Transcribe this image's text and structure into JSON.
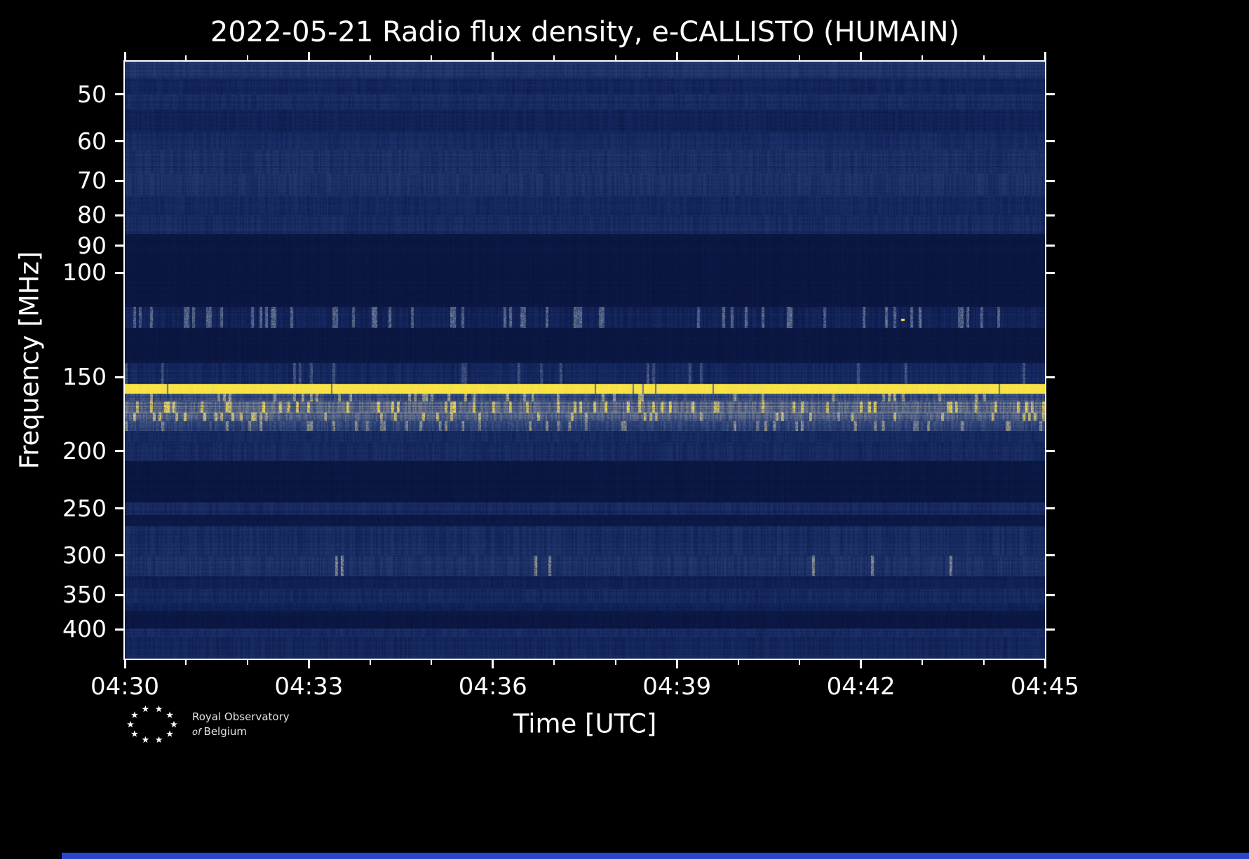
{
  "colors": {
    "background": "#000000",
    "frame": "#ffffff",
    "text": "#ffffff",
    "bottom_strip": "#2a46cf"
  },
  "title": "2022-05-21 Radio flux density, e-CALLISTO (HUMAIN)",
  "logo": {
    "line1": "Royal Observatory",
    "line2_italic": "of",
    "line2_rest": "Belgium"
  },
  "chart_data": {
    "type": "heatmap",
    "title": "2022-05-21 Radio flux density, e-CALLISTO (HUMAIN)",
    "xlabel": "Time [UTC]",
    "ylabel": "Frequency [MHz]",
    "grid": false,
    "legend": "none",
    "x_axis": {
      "ticks": [
        "04:30",
        "04:33",
        "04:36",
        "04:39",
        "04:42",
        "04:45"
      ],
      "minutes_total": 15,
      "minutes_per_major": 3
    },
    "y_axis": {
      "scale": "log",
      "fmin": 44,
      "fmax": 448,
      "ticks": [
        50,
        60,
        70,
        80,
        90,
        100,
        150,
        200,
        250,
        300,
        350,
        400
      ]
    },
    "colormap": [
      {
        "pos": 0.0,
        "color": "#070f33"
      },
      {
        "pos": 0.15,
        "color": "#13255c"
      },
      {
        "pos": 0.35,
        "color": "#2e4479"
      },
      {
        "pos": 0.55,
        "color": "#6d7790"
      },
      {
        "pos": 0.75,
        "color": "#b7ad85"
      },
      {
        "pos": 0.88,
        "color": "#e6d45c"
      },
      {
        "pos": 1.0,
        "color": "#ffe93e"
      }
    ],
    "bands": [
      {
        "f0": 44,
        "f1": 47,
        "base": 0.2,
        "noise": 0.1,
        "speckle": 0,
        "gain": 0,
        "gap": 0
      },
      {
        "f0": 47,
        "f1": 50,
        "base": 0.13,
        "noise": 0.08,
        "speckle": 0,
        "gain": 0,
        "gap": 0
      },
      {
        "f0": 50,
        "f1": 53,
        "base": 0.16,
        "noise": 0.1,
        "speckle": 0,
        "gain": 0,
        "gap": 0
      },
      {
        "f0": 53,
        "f1": 58,
        "base": 0.11,
        "noise": 0.07,
        "speckle": 0,
        "gain": 0,
        "gap": 0
      },
      {
        "f0": 58,
        "f1": 62,
        "base": 0.15,
        "noise": 0.09,
        "speckle": 0,
        "gain": 0,
        "gap": 0
      },
      {
        "f0": 62,
        "f1": 68,
        "base": 0.17,
        "noise": 0.11,
        "speckle": 0,
        "gain": 0,
        "gap": 0
      },
      {
        "f0": 68,
        "f1": 74,
        "base": 0.18,
        "noise": 0.12,
        "speckle": 0,
        "gain": 0,
        "gap": 0
      },
      {
        "f0": 74,
        "f1": 80,
        "base": 0.14,
        "noise": 0.09,
        "speckle": 0,
        "gain": 0,
        "gap": 0
      },
      {
        "f0": 80,
        "f1": 86,
        "base": 0.16,
        "noise": 0.1,
        "speckle": 0,
        "gain": 0,
        "gap": 0
      },
      {
        "f0": 86,
        "f1": 114,
        "base": 0.05,
        "noise": 0.025,
        "speckle": 0,
        "gain": 0,
        "gap": 0
      },
      {
        "f0": 114,
        "f1": 124,
        "base": 0.1,
        "noise": 0.1,
        "speckle": 0.15,
        "gain": 0.45,
        "gap": 0
      },
      {
        "f0": 124,
        "f1": 142,
        "base": 0.05,
        "noise": 0.025,
        "speckle": 0,
        "gain": 0,
        "gap": 0
      },
      {
        "f0": 142,
        "f1": 154,
        "base": 0.13,
        "noise": 0.11,
        "speckle": 0.05,
        "gain": 0.3,
        "gap": 0
      },
      {
        "f0": 154,
        "f1": 160,
        "base": 0.95,
        "noise": 0.05,
        "speckle": 0,
        "gain": 0,
        "gap": 0.012
      },
      {
        "f0": 160,
        "f1": 165,
        "base": 0.3,
        "noise": 0.18,
        "speckle": 0.12,
        "gain": 0.4,
        "gap": 0
      },
      {
        "f0": 165,
        "f1": 172,
        "base": 0.42,
        "noise": 0.22,
        "speckle": 0.15,
        "gain": 0.45,
        "gap": 0
      },
      {
        "f0": 172,
        "f1": 178,
        "base": 0.38,
        "noise": 0.2,
        "speckle": 0.12,
        "gain": 0.4,
        "gap": 0
      },
      {
        "f0": 178,
        "f1": 185,
        "base": 0.28,
        "noise": 0.18,
        "speckle": 0.1,
        "gain": 0.35,
        "gap": 0
      },
      {
        "f0": 185,
        "f1": 193,
        "base": 0.15,
        "noise": 0.1,
        "speckle": 0,
        "gain": 0,
        "gap": 0
      },
      {
        "f0": 193,
        "f1": 208,
        "base": 0.14,
        "noise": 0.11,
        "speckle": 0,
        "gain": 0,
        "gap": 0
      },
      {
        "f0": 208,
        "f1": 244,
        "base": 0.05,
        "noise": 0.025,
        "speckle": 0,
        "gain": 0,
        "gap": 0
      },
      {
        "f0": 244,
        "f1": 256,
        "base": 0.14,
        "noise": 0.1,
        "speckle": 0,
        "gain": 0,
        "gap": 0
      },
      {
        "f0": 256,
        "f1": 268,
        "base": 0.06,
        "noise": 0.03,
        "speckle": 0,
        "gain": 0,
        "gap": 0
      },
      {
        "f0": 268,
        "f1": 300,
        "base": 0.16,
        "noise": 0.12,
        "speckle": 0,
        "gain": 0,
        "gap": 0
      },
      {
        "f0": 300,
        "f1": 325,
        "base": 0.17,
        "noise": 0.13,
        "speckle": 0.02,
        "gain": 0.5,
        "gap": 0
      },
      {
        "f0": 325,
        "f1": 342,
        "base": 0.1,
        "noise": 0.06,
        "speckle": 0,
        "gain": 0,
        "gap": 0
      },
      {
        "f0": 342,
        "f1": 360,
        "base": 0.14,
        "noise": 0.1,
        "speckle": 0,
        "gain": 0,
        "gap": 0
      },
      {
        "f0": 360,
        "f1": 372,
        "base": 0.11,
        "noise": 0.07,
        "speckle": 0,
        "gain": 0,
        "gap": 0
      },
      {
        "f0": 372,
        "f1": 398,
        "base": 0.05,
        "noise": 0.03,
        "speckle": 0,
        "gain": 0,
        "gap": 0
      },
      {
        "f0": 398,
        "f1": 412,
        "base": 0.15,
        "noise": 0.1,
        "speckle": 0,
        "gain": 0,
        "gap": 0
      },
      {
        "f0": 412,
        "f1": 448,
        "base": 0.13,
        "noise": 0.09,
        "speckle": 0,
        "gain": 0,
        "gap": 0
      }
    ],
    "hot_pixels": [
      {
        "x_frac": 0.845,
        "f": 120
      }
    ]
  }
}
